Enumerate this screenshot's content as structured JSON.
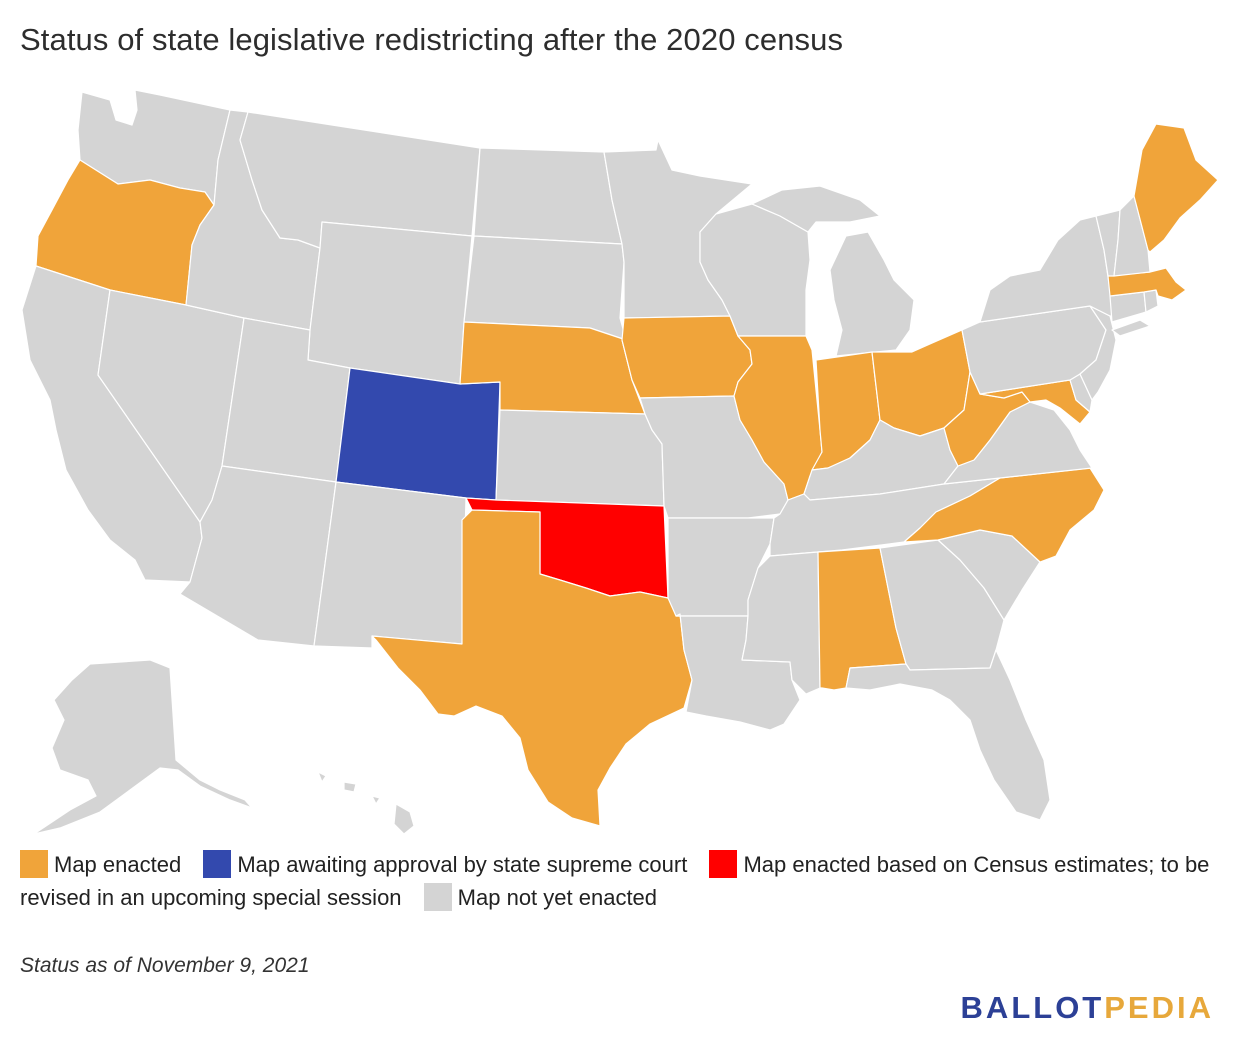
{
  "title": "Status of state legislative redistricting after the 2020 census",
  "colors": {
    "enacted": "#F0A43A",
    "awaiting": "#3349AE",
    "census_estimates": "#FF0000",
    "not_enacted": "#D4D4D4",
    "brand_blue": "#2C4096",
    "brand_gold": "#E7A83B"
  },
  "legend": [
    {
      "key": "enacted",
      "label": "Map enacted"
    },
    {
      "key": "awaiting",
      "label": "Map awaiting approval by state supreme court"
    },
    {
      "key": "census_estimates",
      "label": "Map enacted based on Census estimates; to be revised in an upcoming special session"
    },
    {
      "key": "not_enacted",
      "label": "Map not yet enacted"
    }
  ],
  "footnote": "Status as of November 9, 2021",
  "brand": {
    "part1": "BALLOT",
    "part2": "PEDIA"
  },
  "map_data": {
    "type": "choropleth",
    "region": "United States",
    "states": {
      "WA": "not_enacted",
      "OR": "enacted",
      "CA": "not_enacted",
      "NV": "not_enacted",
      "ID": "not_enacted",
      "MT": "not_enacted",
      "WY": "not_enacted",
      "UT": "not_enacted",
      "AZ": "not_enacted",
      "CO": "awaiting",
      "NM": "not_enacted",
      "ND": "not_enacted",
      "SD": "not_enacted",
      "NE": "enacted",
      "KS": "not_enacted",
      "OK": "census_estimates",
      "TX": "enacted",
      "MN": "not_enacted",
      "IA": "enacted",
      "MO": "not_enacted",
      "AR": "not_enacted",
      "LA": "not_enacted",
      "WI": "not_enacted",
      "IL": "enacted",
      "MI": "not_enacted",
      "IN": "enacted",
      "OH": "enacted",
      "KY": "not_enacted",
      "TN": "not_enacted",
      "MS": "not_enacted",
      "AL": "enacted",
      "GA": "not_enacted",
      "FL": "not_enacted",
      "SC": "not_enacted",
      "NC": "enacted",
      "VA": "not_enacted",
      "WV": "enacted",
      "MD": "enacted",
      "DE": "not_enacted",
      "PA": "not_enacted",
      "NJ": "not_enacted",
      "NY": "not_enacted",
      "CT": "not_enacted",
      "RI": "not_enacted",
      "MA": "enacted",
      "VT": "not_enacted",
      "NH": "not_enacted",
      "ME": "enacted",
      "AK": "not_enacted",
      "HI": "not_enacted"
    }
  }
}
